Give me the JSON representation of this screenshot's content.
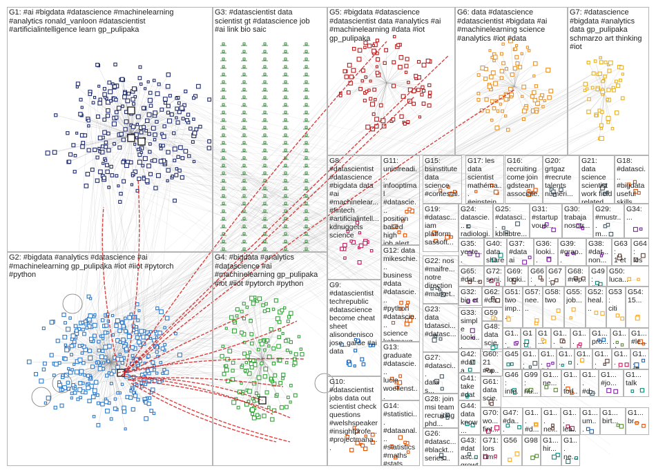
{
  "colors": {
    "g1": "#1f2a6b",
    "g2": "#2f79c8",
    "g3": "#2e7d32",
    "g4": "#34a33a",
    "g5": "#b71c1c",
    "g6": "#e8922b",
    "g7": "#e8b020",
    "edge": "#8c8c8c",
    "red_edge": "#d21f1f",
    "border": "#b4b4b4"
  },
  "groups": [
    {
      "id": "G1",
      "label": "G1: #ai #bigdata #datascience #machinelearning\n#analytics ronald_vanloon #datascientist\n#artificialintelligence learn gp_pulipaka"
    },
    {
      "id": "G2",
      "label": "G2: #bigdata #analytics #datascience #ai\n#machinelearning gp_pulipaka #iot #iiot #pytorch\n#python"
    },
    {
      "id": "G3",
      "label": "G3: #datascientist data\nscientist gt #datascience job\n#ai link bio saic"
    },
    {
      "id": "G4",
      "label": "G4: #bigdata #analytics\n#datascience #ai\n#machinelearning gp_pulipaka\n#iot #iiot #pytorch #python"
    },
    {
      "id": "G5",
      "label": "G5: #bigdata #datascience\n#datascientist data #analytics #ai\n#machinelearning #data #iot\ngp_pulipaka"
    },
    {
      "id": "G6",
      "label": "G6: data #datascience\n#datascientist #bigdata #ai\n#machinelearning science\n#analytics #iot #data"
    },
    {
      "id": "G7",
      "label": "G7: #datascience\n#bigdata #analytics\ndata gp_pulipaka\nschmarzo art thinking\n#iot"
    },
    {
      "id": "G8",
      "label": "G8:\n#datascientist\n#datascience\n#bigdata data\n#ai\n#machinelear...\n#fintech\n#artificialintell...\nkdnuggets\nscience"
    },
    {
      "id": "G9",
      "label": "G9:\n#datascientist\ntechrepublic\n#datascience\nbecome cheat\nsheet\nalisondenisco\njose_garde #ai\ndata"
    },
    {
      "id": "G10",
      "label": "G10:\n#datascientist\njobs data out\nscientist check\nquestions\n#welshspeaker\n#insightprofe...\n#projectmana..."
    },
    {
      "id": "G11",
      "label": "G11:\nuniofreadi...\ninfooptimal\n#datascie...\nposition\nbased high\njob alert\nteamed up"
    },
    {
      "id": "G12",
      "label": "G12: data\nmikeschie...\nbusiness\n#data\n#datascie...\n#python\n#datascie...\nscience\nkobmaxq..."
    },
    {
      "id": "G13",
      "label": "G13:\ngraduate\n#datascie...\nlucie\nwoellenst...\nvisualising\nbritain's..."
    },
    {
      "id": "G14",
      "label": "G14:\n#statistici...\n#dataanal...\n#statistics\n#maths\n#stats\n#econom..."
    },
    {
      "id": "G15",
      "label": "G15:\nbsinstitute\ndata\nscience\n#contestal..."
    },
    {
      "id": "G16",
      "label": "G16:\nrecruiting\ncome join\ngdsteam\nassociate..."
    },
    {
      "id": "G17",
      "label": "G17: les\ndata\nscientist\nmathéma...\n#einstein..."
    },
    {
      "id": "G18",
      "label": "G18:\n#datasci...\n#bigdata\nuseful\nskills..."
    },
    {
      "id": "G19",
      "label": "G19:\n#datasc...\niam\nplatform\nsassoft..."
    },
    {
      "id": "G20",
      "label": "G20:\ngrtgaz\n#recrute\ntalents\nnuméri..."
    },
    {
      "id": "G21",
      "label": "G21: data\nscience\nscientist\nwork field\nrelated..."
    },
    {
      "id": "G22",
      "label": "G22: nos\n#maifre...\nnotre\ndirection\n#market..."
    },
    {
      "id": "G23",
      "label": "G23:\ndata\ntdatasci...\n#datasc..."
    },
    {
      "id": "G24",
      "label": "G24:\ndatascie...\nradiologi..."
    },
    {
      "id": "G25",
      "label": "G25:\n#datasci...\nkblabtre..."
    },
    {
      "id": "G26",
      "label": "G26:\n#datasc...\n#blackt...\nseries..."
    },
    {
      "id": "G27",
      "label": "G27:\n#datasci...\ndata\ns..."
    },
    {
      "id": "G28",
      "label": "G28: join\nmsi team\nrecruiting\nphd..."
    },
    {
      "id": "G29",
      "label": "G29:\n#mustr...\nm..."
    },
    {
      "id": "G30",
      "label": "G30:\ntrabaja\nnosotr..."
    },
    {
      "id": "G31",
      "label": "G31:\n#startup\nvous..."
    },
    {
      "id": "G32",
      "label": "G32:\nbig et\nqu..."
    },
    {
      "id": "G33",
      "label": "G33:\nsimple\nlooki...\nperso..."
    },
    {
      "id": "G34",
      "label": "G34:\n..."
    },
    {
      "id": "G35",
      "label": "G35:\nyeste...\nkhan..."
    },
    {
      "id": "G36",
      "label": "G36:\nlooki...\nhighl..."
    },
    {
      "id": "G37",
      "label": "G37:\n#data\nai"
    },
    {
      "id": "G38",
      "label": "G38:\n#dat...\nnon..."
    },
    {
      "id": "G39",
      "label": "G39:\n#grap...\nspee..."
    },
    {
      "id": "G40",
      "label": "G40:\ndata\nshare..."
    },
    {
      "id": "G41",
      "label": "G41:\ntake\n#data..."
    },
    {
      "id": "G42",
      "label": "G42:\n#data\ns..."
    },
    {
      "id": "G43",
      "label": "G43:\n#datasc...\ngrowt..."
    },
    {
      "id": "G44",
      "label": "G44:\ndata\nknow..."
    },
    {
      "id": "G45",
      "label": "G45"
    },
    {
      "id": "G46",
      "label": "G46:\ninte...\npls..."
    },
    {
      "id": "G47",
      "label": "G47:\n#da...\nrecl..."
    },
    {
      "id": "G48",
      "label": "G48:\ndata\nscie..."
    },
    {
      "id": "G49",
      "label": "G49:\n#da..."
    },
    {
      "id": "G50",
      "label": "G50:\nluca..."
    },
    {
      "id": "G51",
      "label": "G51:\ntwo\nimp..."
    },
    {
      "id": "G52",
      "label": "G52:\nheal..."
    },
    {
      "id": "G53",
      "label": "G53:\nciti"
    },
    {
      "id": "G54",
      "label": "G54:\n15..."
    },
    {
      "id": "G55",
      "label": "G55:\njob..."
    },
    {
      "id": "G56",
      "label": "G56"
    },
    {
      "id": "G57",
      "label": "G57:\nnee..."
    },
    {
      "id": "G58",
      "label": "G58:\ntwo"
    },
    {
      "id": "G59",
      "label": "G59"
    },
    {
      "id": "G60",
      "label": "G60:\n21\n#op..."
    },
    {
      "id": "G61",
      "label": "G61:\ndata\nscie..."
    },
    {
      "id": "G62",
      "label": "G62:\n#da...\n#da..."
    },
    {
      "id": "G63",
      "label": "G63:\n1 et"
    },
    {
      "id": "G64",
      "label": "G64:\nles\ndat..."
    },
    {
      "id": "G65",
      "label": "G65:\n#dat..."
    },
    {
      "id": "G66",
      "label": "G66:\nplea..."
    },
    {
      "id": "G67",
      "label": "G67:\ndisc..."
    },
    {
      "id": "G68",
      "label": "G68:\n#rep..."
    },
    {
      "id": "G69",
      "label": "G69:\nlooki..."
    },
    {
      "id": "G70",
      "label": "G70:\nwo...\nfint..."
    },
    {
      "id": "G71",
      "label": "G71:\nlors\nl'im..."
    },
    {
      "id": "G72",
      "label": "G72:\nseni..."
    },
    {
      "id": "G98",
      "label": "G98"
    },
    {
      "id": "G99",
      "label": "G99:\nnu..."
    },
    {
      "id": "Ga",
      "label": "G1...\ndi..."
    },
    {
      "id": "Gb",
      "label": "G1...\nwij..."
    },
    {
      "id": "Gc",
      "label": "G1...\nne..."
    },
    {
      "id": "Gd",
      "label": "G1...\nrajk..."
    },
    {
      "id": "Ge",
      "label": "G1...\nsec..."
    },
    {
      "id": "Gf",
      "label": "G1...\npro..."
    },
    {
      "id": "Gg",
      "label": "G1...\nda..."
    },
    {
      "id": "Gh",
      "label": "G1...\n#le..."
    },
    {
      "id": "Gi",
      "label": "G1...\nkn..."
    },
    {
      "id": "Gj",
      "label": "G1...\n#d..."
    },
    {
      "id": "Gk",
      "label": "G1...\nsa..."
    },
    {
      "id": "Gl",
      "label": "G1...\nnu..."
    },
    {
      "id": "Gm",
      "label": "G1...\ntec..."
    },
    {
      "id": "Gn",
      "label": "G1...\nai..."
    },
    {
      "id": "Go",
      "label": "G1...\n講..."
    },
    {
      "id": "Gp",
      "label": "G1...\nne..."
    },
    {
      "id": "Gq",
      "label": "G1...\ntod..."
    },
    {
      "id": "Gr",
      "label": "G1...\n#d..."
    },
    {
      "id": "Gs",
      "label": "G1...\n#jo..."
    },
    {
      "id": "Gt",
      "label": "G1...\ntalk"
    },
    {
      "id": "Gu",
      "label": "G1...\n#d..."
    },
    {
      "id": "Gv",
      "label": "G1...\nne..."
    },
    {
      "id": "Gw",
      "label": "G1...\nlea..."
    },
    {
      "id": "Gx",
      "label": "G1...\num..."
    },
    {
      "id": "Gy",
      "label": "G1...\nbirt..."
    },
    {
      "id": "Gz",
      "label": "G1...\nbr..."
    },
    {
      "id": "Gaa",
      "label": "G1...\nhir..."
    },
    {
      "id": "Gab",
      "label": "G1...\nne..."
    }
  ]
}
